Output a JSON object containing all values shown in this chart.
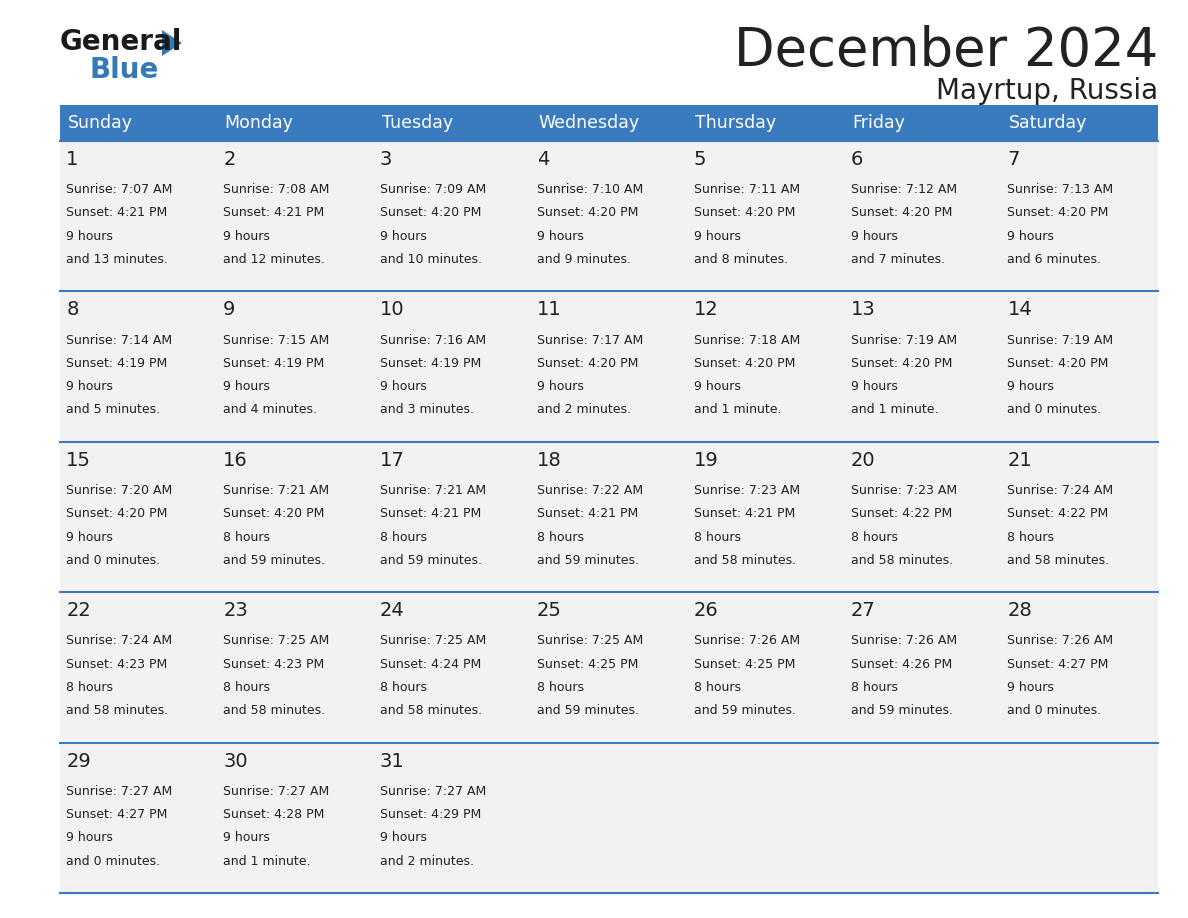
{
  "title": "December 2024",
  "subtitle": "Mayrtup, Russia",
  "header_color": "#3a7abf",
  "header_text_color": "#ffffff",
  "day_names": [
    "Sunday",
    "Monday",
    "Tuesday",
    "Wednesday",
    "Thursday",
    "Friday",
    "Saturday"
  ],
  "weeks": [
    [
      {
        "day": 1,
        "sunrise": "7:07 AM",
        "sunset": "4:21 PM",
        "daylight": "9 hours\nand 13 minutes."
      },
      {
        "day": 2,
        "sunrise": "7:08 AM",
        "sunset": "4:21 PM",
        "daylight": "9 hours\nand 12 minutes."
      },
      {
        "day": 3,
        "sunrise": "7:09 AM",
        "sunset": "4:20 PM",
        "daylight": "9 hours\nand 10 minutes."
      },
      {
        "day": 4,
        "sunrise": "7:10 AM",
        "sunset": "4:20 PM",
        "daylight": "9 hours\nand 9 minutes."
      },
      {
        "day": 5,
        "sunrise": "7:11 AM",
        "sunset": "4:20 PM",
        "daylight": "9 hours\nand 8 minutes."
      },
      {
        "day": 6,
        "sunrise": "7:12 AM",
        "sunset": "4:20 PM",
        "daylight": "9 hours\nand 7 minutes."
      },
      {
        "day": 7,
        "sunrise": "7:13 AM",
        "sunset": "4:20 PM",
        "daylight": "9 hours\nand 6 minutes."
      }
    ],
    [
      {
        "day": 8,
        "sunrise": "7:14 AM",
        "sunset": "4:19 PM",
        "daylight": "9 hours\nand 5 minutes."
      },
      {
        "day": 9,
        "sunrise": "7:15 AM",
        "sunset": "4:19 PM",
        "daylight": "9 hours\nand 4 minutes."
      },
      {
        "day": 10,
        "sunrise": "7:16 AM",
        "sunset": "4:19 PM",
        "daylight": "9 hours\nand 3 minutes."
      },
      {
        "day": 11,
        "sunrise": "7:17 AM",
        "sunset": "4:20 PM",
        "daylight": "9 hours\nand 2 minutes."
      },
      {
        "day": 12,
        "sunrise": "7:18 AM",
        "sunset": "4:20 PM",
        "daylight": "9 hours\nand 1 minute."
      },
      {
        "day": 13,
        "sunrise": "7:19 AM",
        "sunset": "4:20 PM",
        "daylight": "9 hours\nand 1 minute."
      },
      {
        "day": 14,
        "sunrise": "7:19 AM",
        "sunset": "4:20 PM",
        "daylight": "9 hours\nand 0 minutes."
      }
    ],
    [
      {
        "day": 15,
        "sunrise": "7:20 AM",
        "sunset": "4:20 PM",
        "daylight": "9 hours\nand 0 minutes."
      },
      {
        "day": 16,
        "sunrise": "7:21 AM",
        "sunset": "4:20 PM",
        "daylight": "8 hours\nand 59 minutes."
      },
      {
        "day": 17,
        "sunrise": "7:21 AM",
        "sunset": "4:21 PM",
        "daylight": "8 hours\nand 59 minutes."
      },
      {
        "day": 18,
        "sunrise": "7:22 AM",
        "sunset": "4:21 PM",
        "daylight": "8 hours\nand 59 minutes."
      },
      {
        "day": 19,
        "sunrise": "7:23 AM",
        "sunset": "4:21 PM",
        "daylight": "8 hours\nand 58 minutes."
      },
      {
        "day": 20,
        "sunrise": "7:23 AM",
        "sunset": "4:22 PM",
        "daylight": "8 hours\nand 58 minutes."
      },
      {
        "day": 21,
        "sunrise": "7:24 AM",
        "sunset": "4:22 PM",
        "daylight": "8 hours\nand 58 minutes."
      }
    ],
    [
      {
        "day": 22,
        "sunrise": "7:24 AM",
        "sunset": "4:23 PM",
        "daylight": "8 hours\nand 58 minutes."
      },
      {
        "day": 23,
        "sunrise": "7:25 AM",
        "sunset": "4:23 PM",
        "daylight": "8 hours\nand 58 minutes."
      },
      {
        "day": 24,
        "sunrise": "7:25 AM",
        "sunset": "4:24 PM",
        "daylight": "8 hours\nand 58 minutes."
      },
      {
        "day": 25,
        "sunrise": "7:25 AM",
        "sunset": "4:25 PM",
        "daylight": "8 hours\nand 59 minutes."
      },
      {
        "day": 26,
        "sunrise": "7:26 AM",
        "sunset": "4:25 PM",
        "daylight": "8 hours\nand 59 minutes."
      },
      {
        "day": 27,
        "sunrise": "7:26 AM",
        "sunset": "4:26 PM",
        "daylight": "8 hours\nand 59 minutes."
      },
      {
        "day": 28,
        "sunrise": "7:26 AM",
        "sunset": "4:27 PM",
        "daylight": "9 hours\nand 0 minutes."
      }
    ],
    [
      {
        "day": 29,
        "sunrise": "7:27 AM",
        "sunset": "4:27 PM",
        "daylight": "9 hours\nand 0 minutes."
      },
      {
        "day": 30,
        "sunrise": "7:27 AM",
        "sunset": "4:28 PM",
        "daylight": "9 hours\nand 1 minute."
      },
      {
        "day": 31,
        "sunrise": "7:27 AM",
        "sunset": "4:29 PM",
        "daylight": "9 hours\nand 2 minutes."
      },
      null,
      null,
      null,
      null
    ]
  ],
  "cell_bg_color": "#f2f2f2",
  "border_color": "#3a7abf",
  "text_color": "#222222",
  "logo_general_color": "#1a1a1a",
  "logo_blue_color": "#3579b8",
  "fig_width": 11.88,
  "fig_height": 9.18,
  "dpi": 100
}
